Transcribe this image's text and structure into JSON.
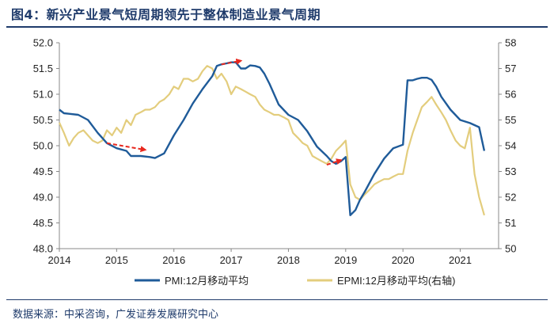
{
  "title": "图4：新兴产业景气短周期领先于整体制造业景气周期",
  "source": "数据来源：中采咨询，广发证券发展研究中心",
  "colors": {
    "pmi": "#1f5b99",
    "epmi": "#e3cd7d",
    "arrow": "#e8281e",
    "title": "#1f3b6b"
  },
  "chart_data": {
    "type": "line",
    "title": "图4：新兴产业景气短周期领先于整体制造业景气周期",
    "x_ticks": [
      "2014",
      "2015",
      "2016",
      "2017",
      "2018",
      "2019",
      "2020",
      "2021"
    ],
    "xlim": [
      2014.0,
      2021.67
    ],
    "y_left": {
      "lim": [
        48.0,
        52.0
      ],
      "ticks": [
        "48.0",
        "48.5",
        "49.0",
        "49.5",
        "50.0",
        "50.5",
        "51.0",
        "51.5",
        "52.0"
      ]
    },
    "y_right": {
      "lim": [
        50,
        58
      ],
      "ticks": [
        "50",
        "51",
        "52",
        "53",
        "54",
        "55",
        "56",
        "57",
        "58"
      ]
    },
    "grid": false,
    "legend_position": "bottom",
    "series": [
      {
        "name": "PMI:12月移动平均",
        "axis": "left",
        "x": [
          2014.0,
          2014.08,
          2014.17,
          2014.33,
          2014.5,
          2014.67,
          2014.83,
          2015.0,
          2015.17,
          2015.25,
          2015.42,
          2015.58,
          2015.67,
          2015.83,
          2016.0,
          2016.17,
          2016.33,
          2016.5,
          2016.67,
          2016.75,
          2016.83,
          2016.92,
          2017.0,
          2017.08,
          2017.17,
          2017.25,
          2017.33,
          2017.42,
          2017.5,
          2017.58,
          2017.67,
          2017.83,
          2018.0,
          2018.17,
          2018.33,
          2018.5,
          2018.67,
          2018.75,
          2018.83,
          2018.92,
          2019.0,
          2019.08,
          2019.17,
          2019.25,
          2019.33,
          2019.5,
          2019.67,
          2019.83,
          2020.0,
          2020.08,
          2020.17,
          2020.25,
          2020.33,
          2020.42,
          2020.5,
          2020.58,
          2020.67,
          2020.83,
          2021.0,
          2021.17,
          2021.33,
          2021.42
        ],
        "values": [
          50.7,
          50.63,
          50.62,
          50.6,
          50.5,
          50.25,
          50.05,
          49.95,
          49.9,
          49.8,
          49.8,
          49.78,
          49.76,
          49.85,
          50.2,
          50.5,
          50.82,
          51.1,
          51.35,
          51.55,
          51.58,
          51.6,
          51.62,
          51.62,
          51.5,
          51.5,
          51.56,
          51.55,
          51.52,
          51.4,
          51.2,
          50.8,
          50.6,
          50.5,
          50.28,
          49.98,
          49.8,
          49.7,
          49.65,
          49.7,
          49.78,
          48.65,
          48.75,
          48.95,
          49.1,
          49.45,
          49.75,
          49.95,
          50.02,
          51.27,
          51.27,
          51.3,
          51.32,
          51.32,
          51.28,
          51.15,
          50.95,
          50.7,
          50.5,
          50.44,
          50.36,
          49.9
        ]
      },
      {
        "name": "EPMI:12月移动平均(右轴)",
        "axis": "right",
        "x": [
          2014.0,
          2014.08,
          2014.17,
          2014.25,
          2014.33,
          2014.42,
          2014.5,
          2014.58,
          2014.67,
          2014.75,
          2014.83,
          2014.92,
          2015.0,
          2015.08,
          2015.17,
          2015.25,
          2015.33,
          2015.42,
          2015.5,
          2015.58,
          2015.67,
          2015.75,
          2015.83,
          2015.92,
          2016.0,
          2016.08,
          2016.17,
          2016.25,
          2016.33,
          2016.42,
          2016.5,
          2016.58,
          2016.67,
          2016.75,
          2016.83,
          2016.92,
          2017.0,
          2017.08,
          2017.17,
          2017.25,
          2017.33,
          2017.42,
          2017.5,
          2017.58,
          2017.67,
          2017.75,
          2017.83,
          2017.92,
          2018.0,
          2018.08,
          2018.17,
          2018.25,
          2018.33,
          2018.42,
          2018.5,
          2018.58,
          2018.67,
          2018.75,
          2018.83,
          2018.92,
          2019.0,
          2019.08,
          2019.17,
          2019.25,
          2019.33,
          2019.42,
          2019.5,
          2019.58,
          2019.67,
          2019.75,
          2019.83,
          2019.92,
          2020.0,
          2020.08,
          2020.17,
          2020.25,
          2020.33,
          2020.42,
          2020.5,
          2020.58,
          2020.67,
          2020.75,
          2020.83,
          2020.92,
          2021.0,
          2021.08,
          2021.17,
          2021.25,
          2021.33,
          2021.42
        ],
        "values": [
          54.9,
          54.5,
          54.0,
          54.3,
          54.5,
          54.6,
          54.4,
          54.2,
          54.1,
          54.2,
          54.6,
          54.4,
          54.7,
          54.5,
          55.0,
          54.8,
          55.2,
          55.3,
          55.4,
          55.4,
          55.5,
          55.7,
          55.8,
          56.0,
          56.3,
          56.2,
          56.6,
          56.6,
          56.5,
          56.6,
          56.9,
          57.1,
          57.0,
          56.6,
          56.8,
          56.5,
          56.0,
          56.3,
          56.2,
          56.1,
          56.0,
          55.9,
          55.6,
          55.4,
          55.3,
          55.2,
          55.2,
          55.1,
          55.0,
          54.5,
          54.3,
          54.1,
          54.0,
          53.6,
          53.5,
          53.4,
          53.3,
          53.5,
          53.8,
          54.0,
          54.2,
          52.5,
          52.0,
          51.9,
          52.1,
          52.3,
          52.5,
          52.6,
          52.7,
          52.7,
          52.8,
          52.9,
          52.9,
          53.8,
          54.5,
          55.0,
          55.5,
          55.7,
          55.9,
          55.6,
          55.3,
          55.0,
          54.6,
          54.2,
          54.0,
          53.9,
          54.7,
          52.9,
          52.0,
          51.3
        ]
      }
    ],
    "annotations": [
      {
        "type": "dashed-arrow",
        "axis": "left",
        "from": [
          2014.83,
          50.05
        ],
        "to": [
          2015.5,
          49.92
        ]
      },
      {
        "type": "dashed-arrow",
        "axis": "left",
        "from": [
          2016.83,
          51.58
        ],
        "to": [
          2017.17,
          51.65
        ]
      },
      {
        "type": "dashed-arrow",
        "axis": "left",
        "from": [
          2018.67,
          49.63
        ],
        "to": [
          2018.92,
          49.72
        ]
      }
    ]
  }
}
